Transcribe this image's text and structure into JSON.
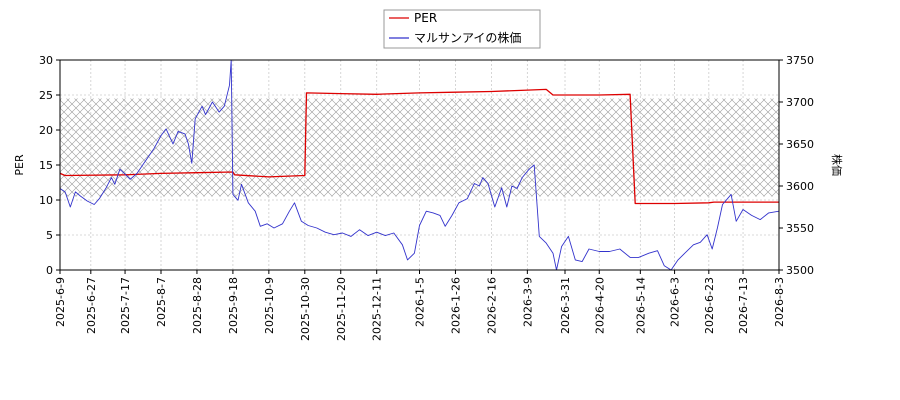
{
  "chart_data": {
    "type": "line",
    "xlabel": "",
    "left_axis": {
      "label": "PER",
      "ylim": [
        0,
        30
      ],
      "ticks": [
        0,
        5,
        10,
        15,
        20,
        25,
        30
      ]
    },
    "right_axis": {
      "label": "株価",
      "ylim": [
        3500,
        3750
      ],
      "ticks": [
        3500,
        3550,
        3600,
        3650,
        3700,
        3750
      ]
    },
    "x_ticks": [
      "2025-6-9",
      "2025-6-27",
      "2025-7-17",
      "2025-8-7",
      "2025-8-28",
      "2025-9-18",
      "2025-10-9",
      "2025-10-30",
      "2025-11-20",
      "2025-12-11",
      "2026-1-5",
      "2026-1-26",
      "2026-2-16",
      "2026-3-9",
      "2026-3-31",
      "2026-4-20",
      "2026-5-14",
      "2026-6-3",
      "2026-6-23",
      "2026-7-13",
      "2026-8-3"
    ],
    "x_range": [
      "2025-6-9",
      "2026-8-3"
    ],
    "shaded_band": {
      "axis": "left",
      "from": 10.5,
      "to": 24.5,
      "pattern": "crosshatch"
    },
    "grid": true,
    "legend_position": "top-center",
    "series": [
      {
        "name": "PER",
        "axis": "left",
        "color": "#dd0000",
        "points": [
          [
            "2025-6-9",
            13.8
          ],
          [
            "2025-6-12",
            13.5
          ],
          [
            "2025-7-17",
            13.6
          ],
          [
            "2025-8-7",
            13.8
          ],
          [
            "2025-8-28",
            13.9
          ],
          [
            "2025-9-18",
            14.0
          ],
          [
            "2025-9-19",
            13.6
          ],
          [
            "2025-10-9",
            13.3
          ],
          [
            "2025-10-30",
            13.5
          ],
          [
            "2025-10-31",
            25.3
          ],
          [
            "2025-11-20",
            25.2
          ],
          [
            "2025-12-11",
            25.1
          ],
          [
            "2026-1-5",
            25.3
          ],
          [
            "2026-1-26",
            25.4
          ],
          [
            "2026-2-16",
            25.5
          ],
          [
            "2026-3-9",
            25.7
          ],
          [
            "2026-3-20",
            25.8
          ],
          [
            "2026-3-24",
            25.0
          ],
          [
            "2026-4-20",
            25.0
          ],
          [
            "2026-5-8",
            25.1
          ],
          [
            "2026-5-11",
            9.5
          ],
          [
            "2026-6-3",
            9.5
          ],
          [
            "2026-6-23",
            9.6
          ],
          [
            "2026-6-26",
            9.7
          ],
          [
            "2026-7-13",
            9.7
          ],
          [
            "2026-8-3",
            9.7
          ]
        ]
      },
      {
        "name": "マルサンアイの株価",
        "axis": "right",
        "color": "#3333cc",
        "points": [
          [
            "2025-6-9",
            3597
          ],
          [
            "2025-6-12",
            3593
          ],
          [
            "2025-6-15",
            3575
          ],
          [
            "2025-6-18",
            3593
          ],
          [
            "2025-6-21",
            3588
          ],
          [
            "2025-6-25",
            3582
          ],
          [
            "2025-6-29",
            3578
          ],
          [
            "2025-7-2",
            3585
          ],
          [
            "2025-7-6",
            3598
          ],
          [
            "2025-7-9",
            3610
          ],
          [
            "2025-7-11",
            3602
          ],
          [
            "2025-7-14",
            3620
          ],
          [
            "2025-7-17",
            3614
          ],
          [
            "2025-7-20",
            3608
          ],
          [
            "2025-7-24",
            3615
          ],
          [
            "2025-7-29",
            3630
          ],
          [
            "2025-8-3",
            3645
          ],
          [
            "2025-8-7",
            3660
          ],
          [
            "2025-8-10",
            3668
          ],
          [
            "2025-8-14",
            3650
          ],
          [
            "2025-8-17",
            3665
          ],
          [
            "2025-8-21",
            3662
          ],
          [
            "2025-8-23",
            3650
          ],
          [
            "2025-8-25",
            3627
          ],
          [
            "2025-8-27",
            3680
          ],
          [
            "2025-8-31",
            3695
          ],
          [
            "2025-9-2",
            3685
          ],
          [
            "2025-9-6",
            3700
          ],
          [
            "2025-9-10",
            3688
          ],
          [
            "2025-9-13",
            3695
          ],
          [
            "2025-9-16",
            3720
          ],
          [
            "2025-9-17",
            3750
          ],
          [
            "2025-9-18",
            3590
          ],
          [
            "2025-9-21",
            3583
          ],
          [
            "2025-9-23",
            3602
          ],
          [
            "2025-9-27",
            3580
          ],
          [
            "2025-10-1",
            3570
          ],
          [
            "2025-10-4",
            3552
          ],
          [
            "2025-10-8",
            3555
          ],
          [
            "2025-10-12",
            3550
          ],
          [
            "2025-10-17",
            3555
          ],
          [
            "2025-10-21",
            3570
          ],
          [
            "2025-10-24",
            3580
          ],
          [
            "2025-10-28",
            3558
          ],
          [
            "2025-11-1",
            3553
          ],
          [
            "2025-11-6",
            3550
          ],
          [
            "2025-11-11",
            3545
          ],
          [
            "2025-11-16",
            3542
          ],
          [
            "2025-11-21",
            3544
          ],
          [
            "2025-11-26",
            3540
          ],
          [
            "2025-12-1",
            3548
          ],
          [
            "2025-12-6",
            3541
          ],
          [
            "2025-12-11",
            3545
          ],
          [
            "2025-12-16",
            3541
          ],
          [
            "2025-12-21",
            3544
          ],
          [
            "2025-12-26",
            3530
          ],
          [
            "2025-12-29",
            3512
          ],
          [
            "2026-1-2",
            3520
          ],
          [
            "2026-1-5",
            3553
          ],
          [
            "2026-1-9",
            3570
          ],
          [
            "2026-1-13",
            3568
          ],
          [
            "2026-1-17",
            3565
          ],
          [
            "2026-1-20",
            3552
          ],
          [
            "2026-1-24",
            3565
          ],
          [
            "2026-1-28",
            3580
          ],
          [
            "2026-2-2",
            3585
          ],
          [
            "2026-2-6",
            3603
          ],
          [
            "2026-2-9",
            3600
          ],
          [
            "2026-2-11",
            3610
          ],
          [
            "2026-2-14",
            3603
          ],
          [
            "2026-2-18",
            3575
          ],
          [
            "2026-2-22",
            3598
          ],
          [
            "2026-2-25",
            3575
          ],
          [
            "2026-2-28",
            3600
          ],
          [
            "2026-3-3",
            3597
          ],
          [
            "2026-3-6",
            3610
          ],
          [
            "2026-3-10",
            3620
          ],
          [
            "2026-3-13",
            3625
          ],
          [
            "2026-3-16",
            3540
          ],
          [
            "2026-3-20",
            3532
          ],
          [
            "2026-3-24",
            3520
          ],
          [
            "2026-3-26",
            3500
          ],
          [
            "2026-3-29",
            3528
          ],
          [
            "2026-4-2",
            3540
          ],
          [
            "2026-4-6",
            3512
          ],
          [
            "2026-4-10",
            3510
          ],
          [
            "2026-4-14",
            3525
          ],
          [
            "2026-4-20",
            3522
          ],
          [
            "2026-4-26",
            3522
          ],
          [
            "2026-5-2",
            3525
          ],
          [
            "2026-5-8",
            3515
          ],
          [
            "2026-5-13",
            3515
          ],
          [
            "2026-5-19",
            3520
          ],
          [
            "2026-5-24",
            3523
          ],
          [
            "2026-5-28",
            3505
          ],
          [
            "2026-6-1",
            3500
          ],
          [
            "2026-6-5",
            3512
          ],
          [
            "2026-6-9",
            3520
          ],
          [
            "2026-6-14",
            3530
          ],
          [
            "2026-6-18",
            3533
          ],
          [
            "2026-6-22",
            3542
          ],
          [
            "2026-6-25",
            3525
          ],
          [
            "2026-6-28",
            3550
          ],
          [
            "2026-7-1",
            3578
          ],
          [
            "2026-7-4",
            3585
          ],
          [
            "2026-7-6",
            3590
          ],
          [
            "2026-7-9",
            3558
          ],
          [
            "2026-7-13",
            3572
          ],
          [
            "2026-7-18",
            3565
          ],
          [
            "2026-7-23",
            3560
          ],
          [
            "2026-7-28",
            3568
          ],
          [
            "2026-8-3",
            3570
          ]
        ]
      }
    ]
  }
}
